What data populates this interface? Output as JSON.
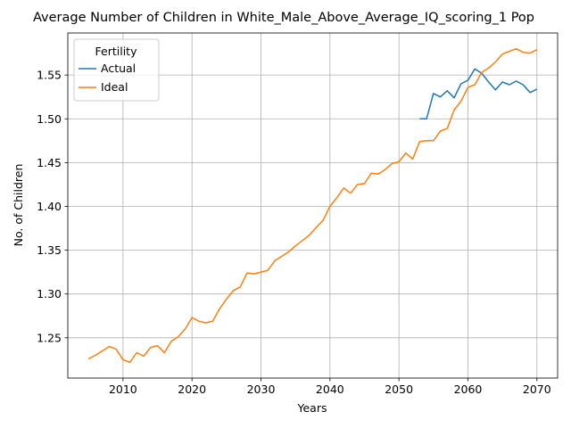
{
  "chart_data": {
    "type": "line",
    "title": "Average Number of Children in White_Male_Above_Average_IQ_scoring_1 Pop",
    "xlabel": "Years",
    "ylabel": "No. of Children",
    "xlim": [
      2002,
      2073
    ],
    "ylim": [
      1.204,
      1.598
    ],
    "xticks": [
      2010,
      2020,
      2030,
      2040,
      2050,
      2060,
      2070
    ],
    "yticks": [
      1.25,
      1.3,
      1.35,
      1.4,
      1.45,
      1.5,
      1.55
    ],
    "ytick_labels": [
      "1.25",
      "1.30",
      "1.35",
      "1.40",
      "1.45",
      "1.50",
      "1.55"
    ],
    "grid": true,
    "legend": {
      "title": "Fertility",
      "position": "top-left"
    },
    "series": [
      {
        "name": "Actual",
        "color": "#1f77b4",
        "x": [
          2053,
          2054,
          2055,
          2056,
          2057,
          2058,
          2059,
          2060,
          2061,
          2062,
          2063,
          2064,
          2065,
          2066,
          2067,
          2068,
          2069,
          2070
        ],
        "y": [
          1.5,
          1.5,
          1.529,
          1.525,
          1.532,
          1.524,
          1.54,
          1.544,
          1.557,
          1.552,
          1.542,
          1.533,
          1.542,
          1.539,
          1.543,
          1.539,
          1.53,
          1.534
        ]
      },
      {
        "name": "Ideal",
        "color": "#ff7f0e",
        "x": [
          2005,
          2006,
          2007,
          2008,
          2009,
          2010,
          2011,
          2012,
          2013,
          2014,
          2015,
          2016,
          2017,
          2018,
          2019,
          2020,
          2021,
          2022,
          2023,
          2024,
          2025,
          2026,
          2027,
          2028,
          2029,
          2030,
          2031,
          2032,
          2033,
          2034,
          2035,
          2036,
          2037,
          2038,
          2039,
          2040,
          2041,
          2042,
          2043,
          2044,
          2045,
          2046,
          2047,
          2048,
          2049,
          2050,
          2051,
          2052,
          2053,
          2054,
          2055,
          2056,
          2057,
          2058,
          2059,
          2060,
          2061,
          2062,
          2063,
          2064,
          2065,
          2066,
          2067,
          2068,
          2069,
          2070
        ],
        "y": [
          1.226,
          1.23,
          1.235,
          1.24,
          1.237,
          1.225,
          1.222,
          1.233,
          1.229,
          1.239,
          1.241,
          1.233,
          1.246,
          1.251,
          1.26,
          1.273,
          1.269,
          1.267,
          1.269,
          1.283,
          1.294,
          1.304,
          1.308,
          1.324,
          1.323,
          1.325,
          1.327,
          1.338,
          1.343,
          1.348,
          1.355,
          1.361,
          1.367,
          1.376,
          1.384,
          1.4,
          1.41,
          1.421,
          1.415,
          1.425,
          1.426,
          1.438,
          1.437,
          1.442,
          1.449,
          1.451,
          1.461,
          1.454,
          1.474,
          1.475,
          1.475,
          1.486,
          1.489,
          1.51,
          1.52,
          1.536,
          1.539,
          1.553,
          1.558,
          1.565,
          1.574,
          1.577,
          1.58,
          1.576,
          1.575,
          1.579
        ]
      }
    ]
  }
}
